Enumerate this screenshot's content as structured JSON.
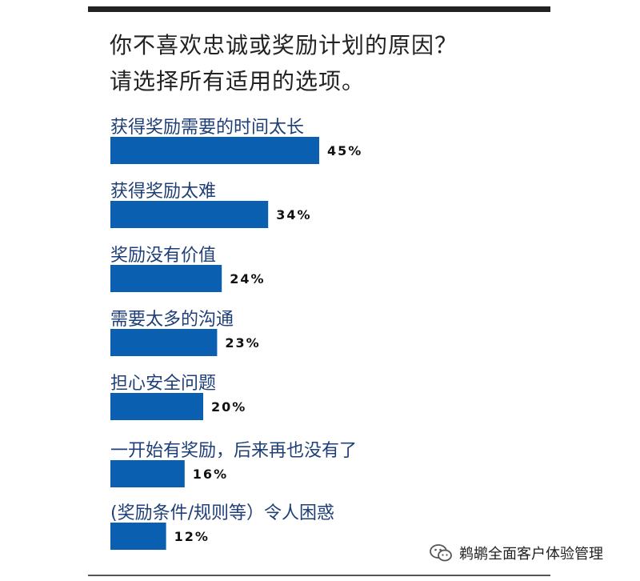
{
  "title_lines": [
    "你不喜欢忠诚或奖励计划的原因？",
    "请选择所有适用的选项。"
  ],
  "watermark": {
    "text": "鹈鹕全面客户体验管理",
    "icon": "wechat-icon"
  },
  "colors": {
    "bar": "#0a5fb0",
    "label": "#1f3f78",
    "value": "#111111",
    "title": "#222222"
  },
  "chart_data": {
    "type": "bar",
    "orientation": "horizontal",
    "title": "你不喜欢忠诚或奖励计划的原因？请选择所有适用的选项。",
    "categories": [
      "获得奖励需要的时间太长",
      "获得奖励太难",
      "奖励没有价值",
      "需要太多的沟通",
      "担心安全问题",
      "一开始有奖励，后来再也没有了",
      "(奖励条件/规则等）令人困惑"
    ],
    "values": [
      45,
      34,
      24,
      23,
      20,
      16,
      12
    ],
    "value_labels": [
      "45%",
      "34%",
      "24%",
      "23%",
      "20%",
      "16%",
      "12%"
    ],
    "unit": "%",
    "xlim": [
      0,
      100
    ],
    "grid": false,
    "legend": "none"
  }
}
